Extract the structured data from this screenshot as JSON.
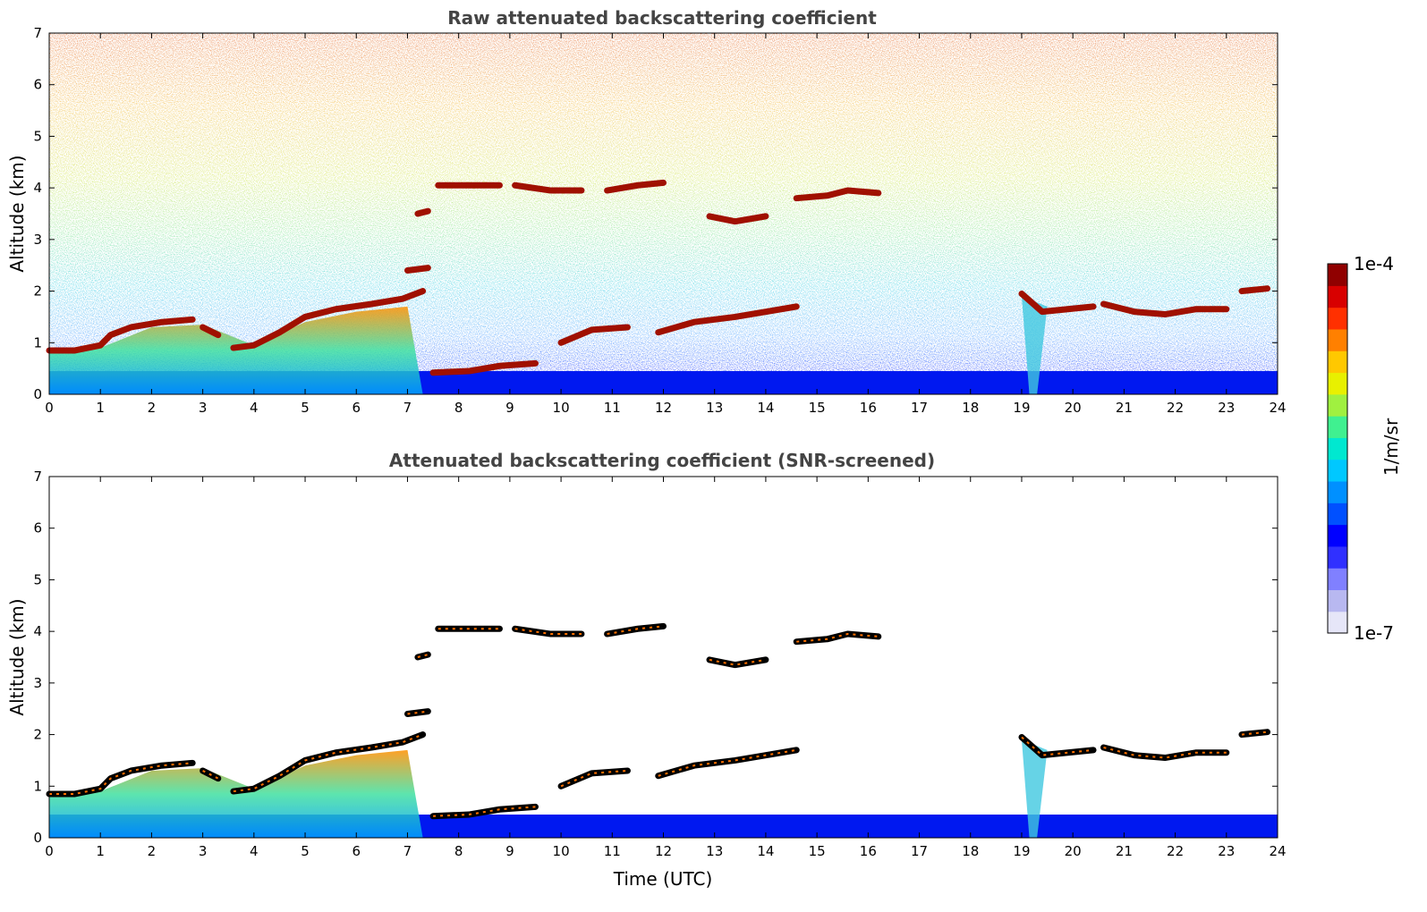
{
  "chart_data": [
    {
      "type": "heatmap",
      "title": "Raw attenuated backscattering coefficient",
      "xlabel": "",
      "ylabel": "Altitude (km)",
      "xlim": [
        0,
        24
      ],
      "ylim": [
        0,
        7
      ],
      "xticks": [
        "0",
        "1",
        "2",
        "3",
        "4",
        "5",
        "6",
        "7",
        "8",
        "9",
        "10",
        "11",
        "12",
        "13",
        "14",
        "15",
        "16",
        "17",
        "18",
        "19",
        "20",
        "21",
        "22",
        "23",
        "24"
      ],
      "yticks": [
        "0",
        "1",
        "2",
        "3",
        "4",
        "5",
        "6",
        "7"
      ],
      "noise_background": true,
      "layers": [
        {
          "points": [
            [
              0,
              0.85
            ],
            [
              0.5,
              0.85
            ],
            [
              1.0,
              0.95
            ],
            [
              1.2,
              1.15
            ],
            [
              1.6,
              1.3
            ],
            [
              2.2,
              1.4
            ],
            [
              2.8,
              1.45
            ]
          ]
        },
        {
          "points": [
            [
              3.0,
              1.3
            ],
            [
              3.3,
              1.15
            ]
          ]
        },
        {
          "points": [
            [
              3.6,
              0.9
            ],
            [
              4.0,
              0.95
            ],
            [
              4.5,
              1.2
            ],
            [
              5.0,
              1.5
            ],
            [
              5.6,
              1.65
            ],
            [
              6.3,
              1.75
            ],
            [
              6.9,
              1.85
            ],
            [
              7.3,
              2.0
            ]
          ]
        },
        {
          "points": [
            [
              7.6,
              4.05
            ],
            [
              8.3,
              4.05
            ],
            [
              8.8,
              4.05
            ]
          ]
        },
        {
          "points": [
            [
              9.1,
              4.05
            ],
            [
              9.8,
              3.95
            ],
            [
              10.4,
              3.95
            ]
          ]
        },
        {
          "points": [
            [
              10.9,
              3.95
            ],
            [
              11.5,
              4.05
            ],
            [
              12.0,
              4.1
            ]
          ]
        },
        {
          "points": [
            [
              12.9,
              3.45
            ],
            [
              13.4,
              3.35
            ],
            [
              14.0,
              3.45
            ]
          ]
        },
        {
          "points": [
            [
              14.6,
              3.8
            ],
            [
              15.2,
              3.85
            ],
            [
              15.6,
              3.95
            ],
            [
              16.2,
              3.9
            ]
          ]
        },
        {
          "points": [
            [
              7.2,
              3.5
            ],
            [
              7.4,
              3.55
            ]
          ]
        },
        {
          "points": [
            [
              7.0,
              2.4
            ],
            [
              7.4,
              2.45
            ]
          ]
        },
        {
          "points": [
            [
              7.5,
              0.42
            ],
            [
              8.2,
              0.45
            ],
            [
              8.8,
              0.55
            ],
            [
              9.5,
              0.6
            ]
          ]
        },
        {
          "points": [
            [
              10.0,
              1.0
            ],
            [
              10.6,
              1.25
            ],
            [
              11.3,
              1.3
            ]
          ]
        },
        {
          "points": [
            [
              11.9,
              1.2
            ],
            [
              12.6,
              1.4
            ],
            [
              13.4,
              1.5
            ],
            [
              14.0,
              1.6
            ],
            [
              14.6,
              1.7
            ]
          ]
        },
        {
          "points": [
            [
              19.0,
              1.95
            ],
            [
              19.4,
              1.6
            ],
            [
              19.9,
              1.65
            ],
            [
              20.4,
              1.7
            ]
          ]
        },
        {
          "points": [
            [
              20.6,
              1.75
            ],
            [
              21.2,
              1.6
            ],
            [
              21.8,
              1.55
            ],
            [
              22.4,
              1.65
            ],
            [
              23.0,
              1.65
            ]
          ]
        },
        {
          "points": [
            [
              23.3,
              2.0
            ],
            [
              23.8,
              2.05
            ]
          ]
        }
      ]
    },
    {
      "type": "heatmap",
      "title": "Attenuated backscattering coefficient (SNR-screened)",
      "xlabel": "Time (UTC)",
      "ylabel": "Altitude (km)",
      "xlim": [
        0,
        24
      ],
      "ylim": [
        0,
        7
      ],
      "xticks": [
        "0",
        "1",
        "2",
        "3",
        "4",
        "5",
        "6",
        "7",
        "8",
        "9",
        "10",
        "11",
        "12",
        "13",
        "14",
        "15",
        "16",
        "17",
        "18",
        "19",
        "20",
        "21",
        "22",
        "23",
        "24"
      ],
      "yticks": [
        "0",
        "1",
        "2",
        "3",
        "4",
        "5",
        "6",
        "7"
      ],
      "noise_background": false,
      "layers": [
        {
          "points": [
            [
              0,
              0.85
            ],
            [
              0.5,
              0.85
            ],
            [
              1.0,
              0.95
            ],
            [
              1.2,
              1.15
            ],
            [
              1.6,
              1.3
            ],
            [
              2.2,
              1.4
            ],
            [
              2.8,
              1.45
            ]
          ]
        },
        {
          "points": [
            [
              3.0,
              1.3
            ],
            [
              3.3,
              1.15
            ]
          ]
        },
        {
          "points": [
            [
              3.6,
              0.9
            ],
            [
              4.0,
              0.95
            ],
            [
              4.5,
              1.2
            ],
            [
              5.0,
              1.5
            ],
            [
              5.6,
              1.65
            ],
            [
              6.3,
              1.75
            ],
            [
              6.9,
              1.85
            ],
            [
              7.3,
              2.0
            ]
          ]
        },
        {
          "points": [
            [
              7.6,
              4.05
            ],
            [
              8.3,
              4.05
            ],
            [
              8.8,
              4.05
            ]
          ]
        },
        {
          "points": [
            [
              9.1,
              4.05
            ],
            [
              9.8,
              3.95
            ],
            [
              10.4,
              3.95
            ]
          ]
        },
        {
          "points": [
            [
              10.9,
              3.95
            ],
            [
              11.5,
              4.05
            ],
            [
              12.0,
              4.1
            ]
          ]
        },
        {
          "points": [
            [
              12.9,
              3.45
            ],
            [
              13.4,
              3.35
            ],
            [
              14.0,
              3.45
            ]
          ]
        },
        {
          "points": [
            [
              14.6,
              3.8
            ],
            [
              15.2,
              3.85
            ],
            [
              15.6,
              3.95
            ],
            [
              16.2,
              3.9
            ]
          ]
        },
        {
          "points": [
            [
              7.2,
              3.5
            ],
            [
              7.4,
              3.55
            ]
          ]
        },
        {
          "points": [
            [
              7.0,
              2.4
            ],
            [
              7.4,
              2.45
            ]
          ]
        },
        {
          "points": [
            [
              7.5,
              0.42
            ],
            [
              8.2,
              0.45
            ],
            [
              8.8,
              0.55
            ],
            [
              9.5,
              0.6
            ]
          ]
        },
        {
          "points": [
            [
              10.0,
              1.0
            ],
            [
              10.6,
              1.25
            ],
            [
              11.3,
              1.3
            ]
          ]
        },
        {
          "points": [
            [
              11.9,
              1.2
            ],
            [
              12.6,
              1.4
            ],
            [
              13.4,
              1.5
            ],
            [
              14.0,
              1.6
            ],
            [
              14.6,
              1.7
            ]
          ]
        },
        {
          "points": [
            [
              19.0,
              1.95
            ],
            [
              19.4,
              1.6
            ],
            [
              19.9,
              1.65
            ],
            [
              20.4,
              1.7
            ]
          ]
        },
        {
          "points": [
            [
              20.6,
              1.75
            ],
            [
              21.2,
              1.6
            ],
            [
              21.8,
              1.55
            ],
            [
              22.4,
              1.65
            ],
            [
              23.0,
              1.65
            ]
          ]
        },
        {
          "points": [
            [
              23.3,
              2.0
            ],
            [
              23.8,
              2.05
            ]
          ]
        }
      ]
    }
  ],
  "colorbar": {
    "max_label": "1e-4",
    "min_label": "1e-7",
    "unit_label": "1/m/sr",
    "colors": [
      "#e6e6f8",
      "#b8b8f0",
      "#8080ff",
      "#3030ff",
      "#0000ff",
      "#0050ff",
      "#0090ff",
      "#00c8ff",
      "#00e8d0",
      "#40f090",
      "#a0f040",
      "#e8f000",
      "#ffc800",
      "#ff8000",
      "#ff3000",
      "#d80000",
      "#900000"
    ]
  }
}
